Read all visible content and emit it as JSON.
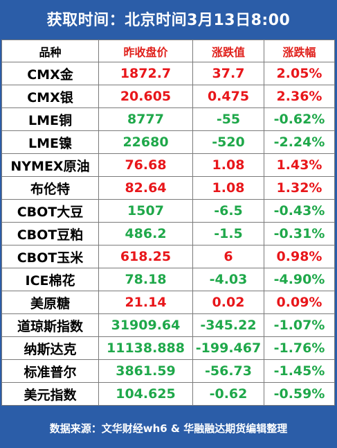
{
  "title": "获取时间：北京时间3月13日8:00",
  "columns": [
    "品种",
    "昨收盘价",
    "涨跌值",
    "涨跌幅"
  ],
  "colors": {
    "header_bg": "#2b5da8",
    "up": "#e8161a",
    "down": "#1fa84a",
    "header_red": "#e0201b"
  },
  "rows": [
    {
      "name": "CMX金",
      "close": "1872.7",
      "change": "37.7",
      "pct": "2.05%",
      "dir": "up"
    },
    {
      "name": "CMX银",
      "close": "20.605",
      "change": "0.475",
      "pct": "2.36%",
      "dir": "up"
    },
    {
      "name": "LME铜",
      "close": "8777",
      "change": "-55",
      "pct": "-0.62%",
      "dir": "down"
    },
    {
      "name": "LME镍",
      "close": "22680",
      "change": "-520",
      "pct": "-2.24%",
      "dir": "down"
    },
    {
      "name": "NYMEX原油",
      "close": "76.68",
      "change": "1.08",
      "pct": "1.43%",
      "dir": "up"
    },
    {
      "name": "布伦特",
      "close": "82.64",
      "change": "1.08",
      "pct": "1.32%",
      "dir": "up"
    },
    {
      "name": "CBOT大豆",
      "close": "1507",
      "change": "-6.5",
      "pct": "-0.43%",
      "dir": "down"
    },
    {
      "name": "CBOT豆粕",
      "close": "486.2",
      "change": "-1.5",
      "pct": "-0.31%",
      "dir": "down"
    },
    {
      "name": "CBOT玉米",
      "close": "618.25",
      "change": "6",
      "pct": "0.98%",
      "dir": "up"
    },
    {
      "name": "ICE棉花",
      "close": "78.18",
      "change": "-4.03",
      "pct": "-4.90%",
      "dir": "down"
    },
    {
      "name": "美原糖",
      "close": "21.14",
      "change": "0.02",
      "pct": "0.09%",
      "dir": "up"
    },
    {
      "name": "道琼斯指数",
      "close": "31909.64",
      "change": "-345.22",
      "pct": "-1.07%",
      "dir": "down"
    },
    {
      "name": "纳斯达克",
      "close": "11138.888",
      "change": "-199.467",
      "pct": "-1.76%",
      "dir": "down"
    },
    {
      "name": "标准普尔",
      "close": "3861.59",
      "change": "-56.73",
      "pct": "-1.45%",
      "dir": "down"
    },
    {
      "name": "美元指数",
      "close": "104.625",
      "change": "-0.62",
      "pct": "-0.59%",
      "dir": "down"
    }
  ],
  "footer": "数据来源：文华财经wh6 & 华融融达期货编辑整理"
}
